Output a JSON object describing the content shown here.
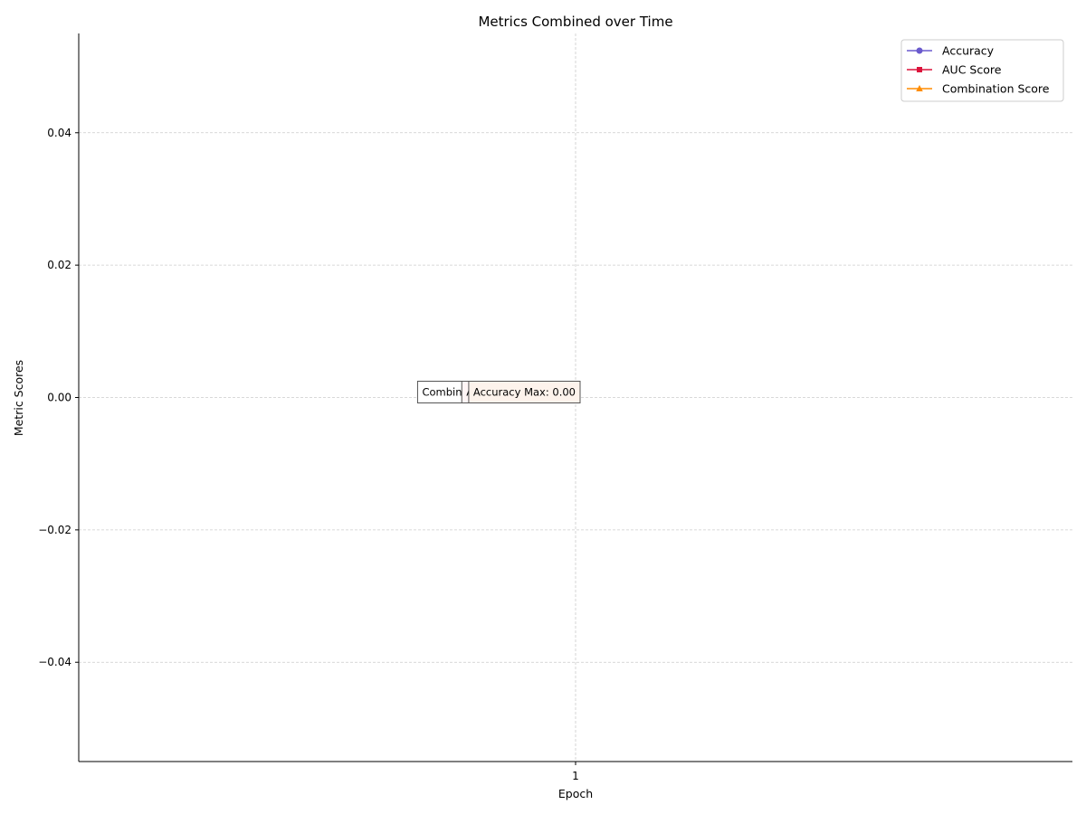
{
  "chart_data": {
    "type": "line",
    "title": "Metrics Combined over Time",
    "xlabel": "Epoch",
    "ylabel": "Metric Scores",
    "categories": [
      "1"
    ],
    "x": [
      1
    ],
    "xlim": [
      0,
      2
    ],
    "ylim": [
      -0.055,
      0.055
    ],
    "yticks": [
      {
        "value": 0.04,
        "label": "0.04"
      },
      {
        "value": 0.02,
        "label": "0.02"
      },
      {
        "value": 0.0,
        "label": "0.00"
      },
      {
        "value": -0.02,
        "label": "−0.02"
      },
      {
        "value": -0.04,
        "label": "−0.04"
      }
    ],
    "grid": true,
    "legend_position": "top-right",
    "series": [
      {
        "name": "Accuracy",
        "values": [
          0.0
        ],
        "color": "#6a5acd",
        "marker": "circle"
      },
      {
        "name": "AUC Score",
        "values": [
          0.0
        ],
        "color": "#dc143c",
        "marker": "square"
      },
      {
        "name": "Combination Score",
        "values": [
          0.0
        ],
        "color": "#ff8c00",
        "marker": "triangle"
      }
    ],
    "annotations": [
      {
        "text": "Combination Score Max: 0.00",
        "x": 1,
        "y": 0.0,
        "edge": "#555555",
        "fill": "#ffffff",
        "z": 1
      },
      {
        "text": "AUC Score Max: 0.00",
        "x": 1,
        "y": 0.0,
        "edge": "#555555",
        "fill": "#fff5f5",
        "z": 2
      },
      {
        "text": "Accuracy Max: 0.00",
        "x": 1,
        "y": 0.0,
        "edge": "#555555",
        "fill": "#fdf3ec",
        "z": 3
      }
    ]
  }
}
